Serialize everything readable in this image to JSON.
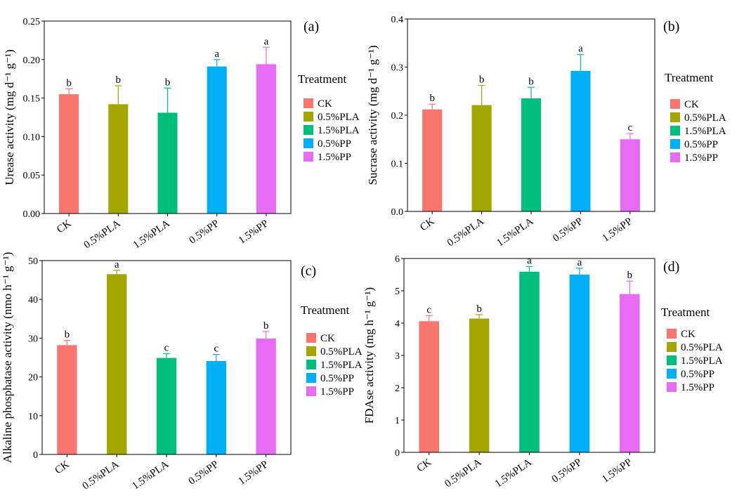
{
  "legend_title": "Treatment",
  "colors": [
    "#F8766D",
    "#A3A500",
    "#00BF7D",
    "#00B0F6",
    "#E76BF3"
  ],
  "chart_data": [
    {
      "type": "bar",
      "panel_label": "(a)",
      "ylabel": "Urease activity (mg d⁻¹ g⁻¹)",
      "categories": [
        "CK",
        "0.5%PLA",
        "1.5%PLA",
        "0.5%PP",
        "1.5%PP"
      ],
      "values": [
        0.155,
        0.142,
        0.131,
        0.191,
        0.194
      ],
      "errors": [
        0.007,
        0.024,
        0.032,
        0.009,
        0.022
      ],
      "letters": [
        "b",
        "b",
        "b",
        "a",
        "a"
      ],
      "ylim": [
        0,
        0.25
      ],
      "yticks": [
        "0.00",
        "0.05",
        "0.10",
        "0.15",
        "0.20",
        "0.25"
      ],
      "legend": "right"
    },
    {
      "type": "bar",
      "panel_label": "(b)",
      "ylabel": "Sucrase activity (mg d⁻¹ g⁻¹)",
      "categories": [
        "CK",
        "0.5%PLA",
        "1.5%PLA",
        "0.5%PP",
        "1.5%PP"
      ],
      "values": [
        0.212,
        0.221,
        0.235,
        0.292,
        0.15
      ],
      "errors": [
        0.011,
        0.041,
        0.023,
        0.034,
        0.012
      ],
      "letters": [
        "b",
        "b",
        "b",
        "a",
        "c"
      ],
      "ylim": [
        0,
        0.4
      ],
      "yticks": [
        "0.0",
        "0.1",
        "0.2",
        "0.3",
        "0.4"
      ],
      "legend": "right"
    },
    {
      "type": "bar",
      "panel_label": "(c)",
      "ylabel": "Alkaline phosphatase activity (nmo h⁻¹ g⁻¹)",
      "categories": [
        "CK",
        "0.5%PLA",
        "1.5%PLA",
        "0.5%PP",
        "1.5%PP"
      ],
      "values": [
        28.2,
        46.5,
        24.9,
        24.1,
        29.9
      ],
      "errors": [
        1.2,
        1.0,
        1.1,
        1.7,
        1.8
      ],
      "letters": [
        "b",
        "a",
        "c",
        "c",
        "b"
      ],
      "ylim": [
        0,
        50
      ],
      "yticks": [
        "0",
        "10",
        "20",
        "30",
        "40",
        "50"
      ],
      "legend": "right"
    },
    {
      "type": "bar",
      "panel_label": "(d)",
      "ylabel": "FDAse activity (mg h⁻¹ g⁻¹)",
      "categories": [
        "CK",
        "0.5%PLA",
        "1.5%PLA",
        "0.5%PP",
        "1.5%PP"
      ],
      "values": [
        4.06,
        4.14,
        5.59,
        5.5,
        4.9
      ],
      "errors": [
        0.17,
        0.12,
        0.16,
        0.2,
        0.4
      ],
      "letters": [
        "c",
        "b",
        "a",
        "a",
        "b"
      ],
      "ylim": [
        0,
        6
      ],
      "yticks": [
        "0",
        "1",
        "2",
        "3",
        "4",
        "5",
        "6"
      ],
      "legend": "right"
    }
  ]
}
